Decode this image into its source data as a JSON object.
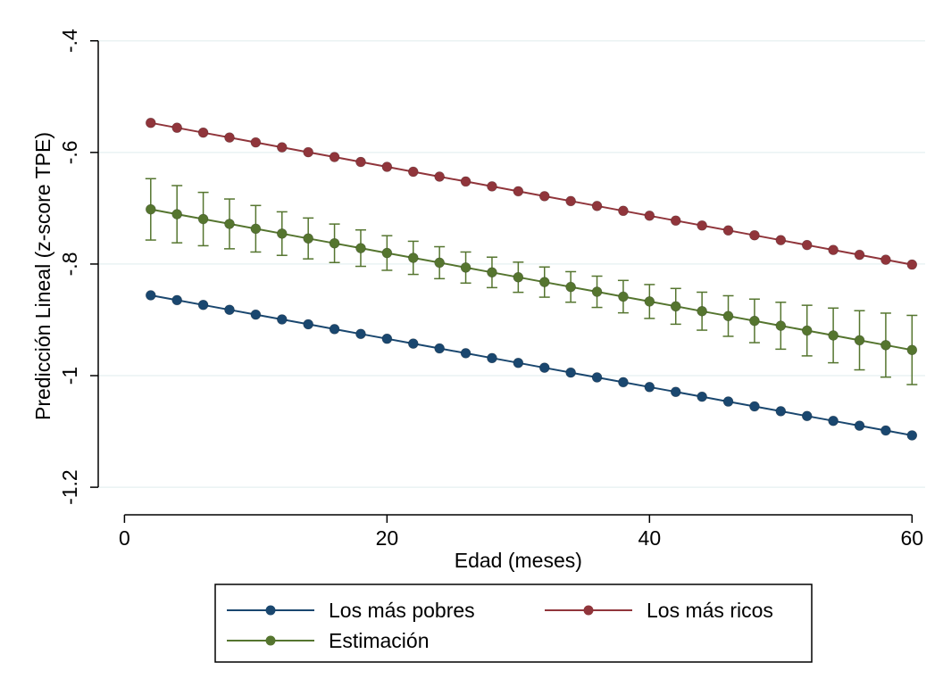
{
  "chart_data": {
    "type": "line",
    "title": "",
    "xlabel": "Edad (meses)",
    "ylabel": "Predicción Lineal (z-score TPE)",
    "xlim": [
      -2,
      61
    ],
    "ylim": [
      -1.235,
      -0.37
    ],
    "xticks": [
      0,
      20,
      40,
      60
    ],
    "xtick_labels": [
      "0",
      "20",
      "40",
      "60"
    ],
    "yticks": [
      -1.2,
      -1.0,
      -0.8,
      -0.6,
      -0.4
    ],
    "ytick_labels": [
      "-1.2",
      "-1",
      "-.8",
      "-.6",
      "-.4"
    ],
    "grid": "horizontal",
    "legend_position": "bottom",
    "x": [
      2,
      4,
      6,
      8,
      10,
      12,
      14,
      16,
      18,
      20,
      22,
      24,
      26,
      28,
      30,
      32,
      34,
      36,
      38,
      40,
      42,
      44,
      46,
      48,
      50,
      52,
      54,
      56,
      58,
      60
    ],
    "series": [
      {
        "name": "Los más pobres",
        "color": "#1a476f",
        "start": -0.856,
        "end": -1.107
      },
      {
        "name": "Los más ricos",
        "color": "#90353b",
        "start": -0.547,
        "end": -0.801
      },
      {
        "name": "Estimación",
        "color": "#55752f",
        "start": -0.702,
        "end": -0.954,
        "ci_start": 0.055,
        "ci_mid": 0.027,
        "ci_end": 0.062
      }
    ]
  }
}
